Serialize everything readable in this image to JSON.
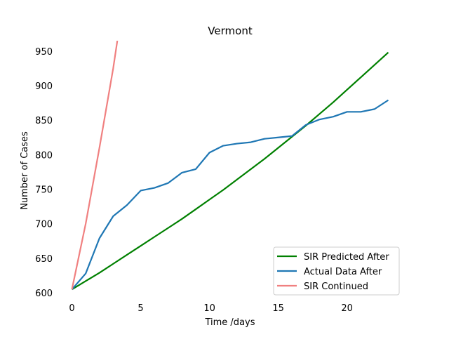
{
  "chart_data": {
    "type": "line",
    "title": "Vermont",
    "xlabel": "Time /days",
    "ylabel": "Number of Cases",
    "xlim": [
      -1.15,
      24.15
    ],
    "ylim": [
      595,
      965
    ],
    "xticks": [
      0,
      5,
      10,
      15,
      20
    ],
    "yticks": [
      600,
      650,
      700,
      750,
      800,
      850,
      900,
      950
    ],
    "grid": false,
    "legend_position": "lower-right",
    "series": [
      {
        "name": "SIR Predicted After",
        "color": "#008000",
        "x": [
          0,
          1,
          2,
          3,
          4,
          5,
          6,
          7,
          8,
          9,
          10,
          11,
          12,
          13,
          14,
          15,
          16,
          17,
          18,
          19,
          20,
          21,
          22,
          23
        ],
        "y": [
          605,
          617,
          629,
          642,
          655,
          668,
          681,
          694,
          707,
          721,
          735,
          749,
          764,
          779,
          794,
          810,
          826,
          842,
          859,
          876,
          894,
          912,
          930,
          948
        ]
      },
      {
        "name": "Actual Data After",
        "color": "#1f77b4",
        "x": [
          0,
          1,
          2,
          3,
          4,
          5,
          6,
          7,
          8,
          9,
          10,
          11,
          12,
          13,
          14,
          15,
          16,
          17,
          18,
          19,
          20,
          21,
          22,
          23
        ],
        "y": [
          605,
          628,
          679,
          711,
          727,
          748,
          752,
          759,
          774,
          779,
          803,
          813,
          816,
          818,
          823,
          825,
          827,
          843,
          851,
          855,
          862,
          862,
          866,
          879
        ]
      },
      {
        "name": "SIR Continued",
        "color": "#f08080",
        "x": [
          0,
          1,
          2,
          3,
          3.3
        ],
        "y": [
          605,
          700,
          810,
          925,
          965
        ]
      }
    ]
  }
}
